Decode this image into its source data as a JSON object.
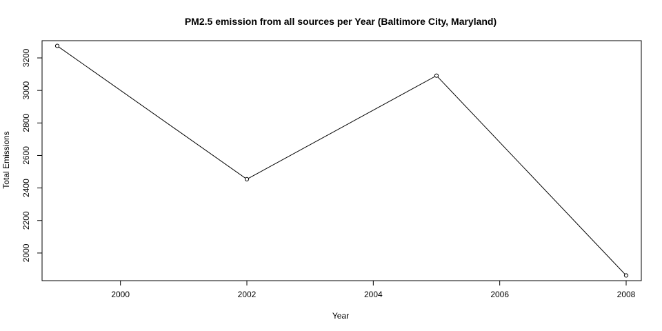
{
  "chart_data": {
    "type": "line",
    "title": "PM2.5 emission from all sources per Year (Baltimore City, Maryland)",
    "xlabel": "Year",
    "ylabel": "Total Emissions",
    "x": [
      1999,
      2002,
      2005,
      2008
    ],
    "series": [
      {
        "values": [
          3274,
          2454,
          3091,
          1862
        ]
      }
    ],
    "xlim": [
      1998.76,
      2008.24
    ],
    "ylim": [
      1830,
      3306
    ],
    "x_ticks": [
      2000,
      2002,
      2004,
      2006,
      2008
    ],
    "y_ticks": [
      2000,
      2200,
      2400,
      2600,
      2800,
      3000,
      3200
    ],
    "x_tick_labels": [
      "2000",
      "2002",
      "2004",
      "2006",
      "2008"
    ],
    "y_tick_labels": [
      "2000",
      "2200",
      "2400",
      "2600",
      "2800",
      "3000",
      "3200"
    ],
    "grid": false,
    "markers": "open-circle",
    "line_color": "#000000"
  }
}
